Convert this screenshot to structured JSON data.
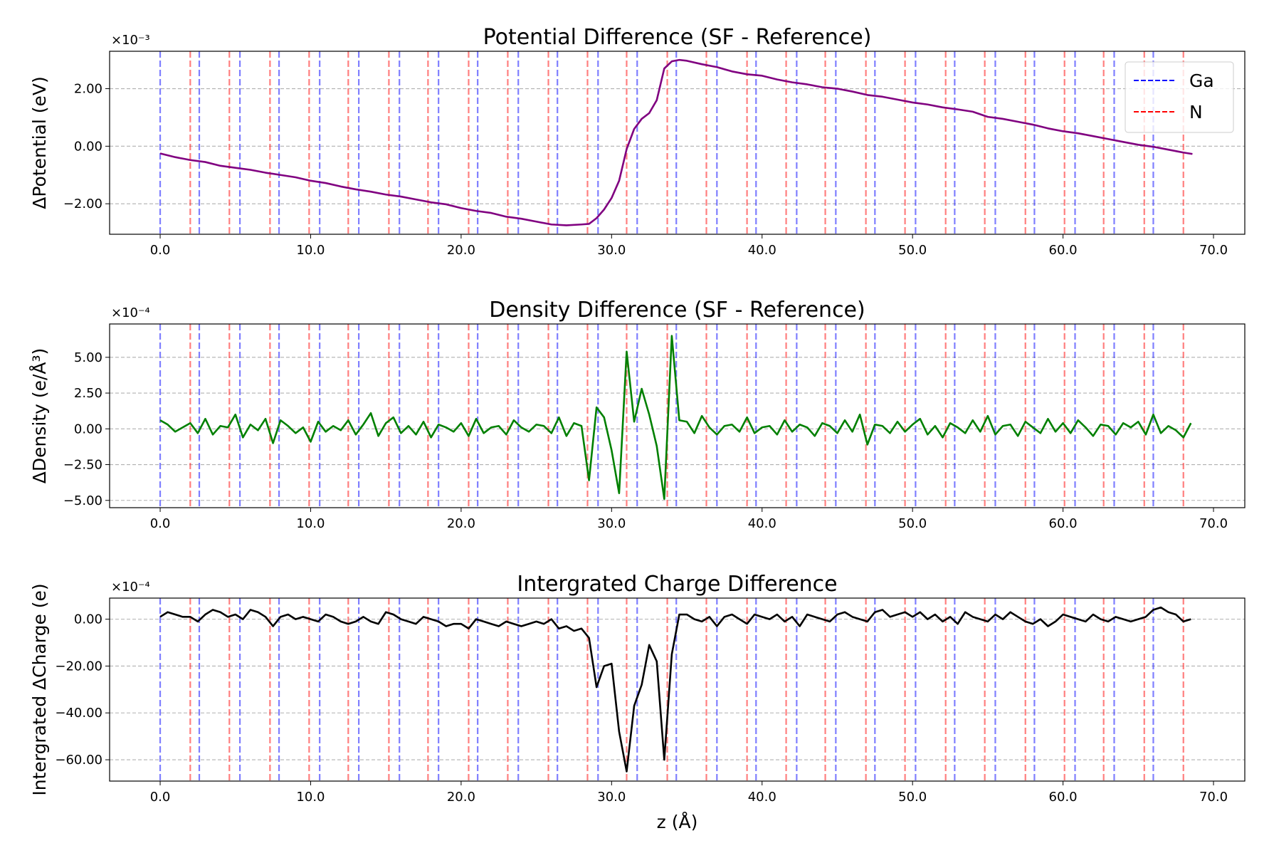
{
  "reference_lines": [
    {
      "name": "Ga",
      "color": "#0000ff",
      "x": [
        0.0,
        2.6,
        5.3,
        7.9,
        10.6,
        13.2,
        15.9,
        18.5,
        21.1,
        23.8,
        26.4,
        29.1,
        31.7,
        34.3,
        37.0,
        39.6,
        42.3,
        44.9,
        47.5,
        50.2,
        52.8,
        55.5,
        58.1,
        60.8,
        63.4,
        66.0
      ]
    },
    {
      "name": "N",
      "color": "#ff0000",
      "x": [
        2.0,
        4.6,
        7.3,
        9.9,
        12.5,
        15.2,
        17.8,
        20.5,
        23.1,
        25.8,
        28.4,
        31.0,
        33.7,
        36.3,
        39.0,
        41.6,
        44.2,
        46.9,
        49.5,
        52.2,
        54.8,
        57.5,
        60.1,
        62.7,
        65.4,
        68.0
      ]
    }
  ],
  "chart_data": [
    {
      "type": "line",
      "title": "Potential Difference (SF - Reference)",
      "y_label": "ΔPotential (eV)",
      "y_offset_label": "×10⁻³",
      "color": "#800080",
      "legend": "upper right",
      "grid": "y",
      "xlim": [
        -3.36,
        72.08
      ],
      "ylim": [
        -3.06,
        3.3
      ],
      "xticks": [
        {
          "value": 0,
          "label": "0.0"
        },
        {
          "value": 10,
          "label": "10.0"
        },
        {
          "value": 20,
          "label": "20.0"
        },
        {
          "value": 30,
          "label": "30.0"
        },
        {
          "value": 40,
          "label": "40.0"
        },
        {
          "value": 50,
          "label": "50.0"
        },
        {
          "value": 60,
          "label": "60.0"
        },
        {
          "value": 70,
          "label": "70.0"
        }
      ],
      "yticks": [
        {
          "value": -2,
          "label": "−2.00"
        },
        {
          "value": 0,
          "label": "0.00"
        },
        {
          "value": 2,
          "label": "2.00"
        }
      ],
      "x": [
        0,
        1,
        2,
        3,
        4,
        5,
        6,
        7,
        8,
        9,
        10,
        11,
        12,
        13,
        14,
        15,
        16,
        17,
        18,
        19,
        20,
        21,
        22,
        23,
        24,
        25,
        26,
        27,
        28,
        28.5,
        29,
        29.5,
        30,
        30.5,
        31,
        31.5,
        32,
        32.5,
        33,
        33.5,
        34,
        34.5,
        35,
        36,
        37,
        38,
        39,
        40,
        41,
        42,
        43,
        44,
        45,
        46,
        47,
        48,
        49,
        50,
        51,
        52,
        53,
        54,
        55,
        56,
        57,
        58,
        59,
        60,
        61,
        62,
        63,
        64,
        65,
        66,
        67,
        68,
        68.6
      ],
      "values": [
        -0.25,
        -0.38,
        -0.48,
        -0.55,
        -0.68,
        -0.75,
        -0.82,
        -0.92,
        -1.0,
        -1.08,
        -1.2,
        -1.28,
        -1.4,
        -1.5,
        -1.58,
        -1.68,
        -1.75,
        -1.85,
        -1.95,
        -2.02,
        -2.15,
        -2.25,
        -2.32,
        -2.45,
        -2.52,
        -2.62,
        -2.72,
        -2.75,
        -2.72,
        -2.7,
        -2.5,
        -2.2,
        -1.8,
        -1.2,
        -0.1,
        0.6,
        0.95,
        1.15,
        1.6,
        2.7,
        2.95,
        3.0,
        2.97,
        2.85,
        2.75,
        2.6,
        2.5,
        2.45,
        2.32,
        2.22,
        2.15,
        2.05,
        2.0,
        1.9,
        1.78,
        1.72,
        1.62,
        1.52,
        1.45,
        1.35,
        1.28,
        1.2,
        1.02,
        0.95,
        0.85,
        0.75,
        0.62,
        0.52,
        0.45,
        0.35,
        0.25,
        0.15,
        0.05,
        -0.02,
        -0.12,
        -0.22,
        -0.27
      ]
    },
    {
      "type": "line",
      "title": "Density Difference (SF - Reference)",
      "y_label": "ΔDensity (e/Å³)",
      "y_offset_label": "×10⁻⁴",
      "color": "#008000",
      "grid": "y",
      "xlim": [
        -3.36,
        72.08
      ],
      "ylim": [
        -5.51,
        7.33
      ],
      "xticks": [
        {
          "value": 0,
          "label": "0.0"
        },
        {
          "value": 10,
          "label": "10.0"
        },
        {
          "value": 20,
          "label": "20.0"
        },
        {
          "value": 30,
          "label": "30.0"
        },
        {
          "value": 40,
          "label": "40.0"
        },
        {
          "value": 50,
          "label": "50.0"
        },
        {
          "value": 60,
          "label": "60.0"
        },
        {
          "value": 70,
          "label": "70.0"
        }
      ],
      "yticks": [
        {
          "value": -5,
          "label": "−5.00"
        },
        {
          "value": -2.5,
          "label": "−2.50"
        },
        {
          "value": 0,
          "label": "0.00"
        },
        {
          "value": 2.5,
          "label": "2.50"
        },
        {
          "value": 5,
          "label": "5.00"
        }
      ],
      "x": [
        0,
        0.5,
        1,
        1.5,
        2,
        2.5,
        3,
        3.5,
        4,
        4.5,
        5,
        5.5,
        6,
        6.5,
        7,
        7.5,
        8,
        8.5,
        9,
        9.5,
        10,
        10.5,
        11,
        11.5,
        12,
        12.5,
        13,
        13.5,
        14,
        14.5,
        15,
        15.5,
        16,
        16.5,
        17,
        17.5,
        18,
        18.5,
        19,
        19.5,
        20,
        20.5,
        21,
        21.5,
        22,
        22.5,
        23,
        23.5,
        24,
        24.5,
        25,
        25.5,
        26,
        26.5,
        27,
        27.5,
        28,
        28.5,
        29,
        29.5,
        30,
        30.5,
        31,
        31.5,
        32,
        32.5,
        33,
        33.5,
        34,
        34.5,
        35,
        35.5,
        36,
        36.5,
        37,
        37.5,
        38,
        38.5,
        39,
        39.5,
        40,
        40.5,
        41,
        41.5,
        42,
        42.5,
        43,
        43.5,
        44,
        44.5,
        45,
        45.5,
        46,
        46.5,
        47,
        47.5,
        48,
        48.5,
        49,
        49.5,
        50,
        50.5,
        51,
        51.5,
        52,
        52.5,
        53,
        53.5,
        54,
        54.5,
        55,
        55.5,
        56,
        56.5,
        57,
        57.5,
        58,
        58.5,
        59,
        59.5,
        60,
        60.5,
        61,
        61.5,
        62,
        62.5,
        63,
        63.5,
        64,
        64.5,
        65,
        65.5,
        66,
        66.5,
        67,
        67.5,
        68,
        68.5
      ],
      "values": [
        0.6,
        0.3,
        -0.2,
        0.1,
        0.4,
        -0.3,
        0.7,
        -0.4,
        0.2,
        0.1,
        1.0,
        -0.6,
        0.3,
        -0.1,
        0.7,
        -1.0,
        0.6,
        0.2,
        -0.3,
        0.1,
        -0.9,
        0.5,
        -0.2,
        0.2,
        -0.1,
        0.6,
        -0.4,
        0.3,
        1.1,
        -0.5,
        0.4,
        0.8,
        -0.3,
        0.2,
        -0.4,
        0.5,
        -0.6,
        0.3,
        0.1,
        -0.2,
        0.4,
        -0.5,
        0.7,
        -0.3,
        0.1,
        0.2,
        -0.4,
        0.6,
        0.1,
        -0.2,
        0.3,
        0.2,
        -0.3,
        0.8,
        -0.5,
        0.4,
        0.2,
        -3.6,
        1.5,
        0.8,
        -1.5,
        -4.5,
        5.4,
        0.5,
        2.8,
        1.0,
        -1.2,
        -4.9,
        6.5,
        0.6,
        0.5,
        -0.3,
        0.9,
        0.1,
        -0.4,
        0.2,
        0.3,
        -0.2,
        0.8,
        -0.3,
        0.1,
        0.2,
        -0.4,
        0.6,
        -0.2,
        0.3,
        0.1,
        -0.5,
        0.4,
        0.2,
        -0.3,
        0.6,
        -0.2,
        1.0,
        -1.1,
        0.3,
        0.2,
        -0.3,
        0.5,
        -0.2,
        0.3,
        0.7,
        -0.4,
        0.2,
        -0.6,
        0.4,
        0.1,
        -0.3,
        0.6,
        -0.2,
        0.9,
        -0.4,
        0.2,
        0.3,
        -0.5,
        0.5,
        0.1,
        -0.3,
        0.7,
        -0.2,
        0.4,
        -0.3,
        0.6,
        0.1,
        -0.5,
        0.3,
        0.2,
        -0.4,
        0.4,
        0.1,
        0.5,
        -0.4,
        1.0,
        -0.3,
        0.2,
        -0.1,
        -0.6,
        0.4
      ]
    },
    {
      "type": "line",
      "title": "Intergrated Charge Difference",
      "y_label": "Intergrated ΔCharge (e)",
      "x_label": "z (Å)",
      "y_offset_label": "×10⁻⁴",
      "color": "#000000",
      "grid": "y",
      "xlim": [
        -3.36,
        72.08
      ],
      "ylim": [
        -69.1,
        9.0
      ],
      "xticks": [
        {
          "value": 0,
          "label": "0.0"
        },
        {
          "value": 10,
          "label": "10.0"
        },
        {
          "value": 20,
          "label": "20.0"
        },
        {
          "value": 30,
          "label": "30.0"
        },
        {
          "value": 40,
          "label": "40.0"
        },
        {
          "value": 50,
          "label": "50.0"
        },
        {
          "value": 60,
          "label": "60.0"
        },
        {
          "value": 70,
          "label": "70.0"
        }
      ],
      "yticks": [
        {
          "value": -60,
          "label": "−60.00"
        },
        {
          "value": -40,
          "label": "−40.00"
        },
        {
          "value": -20,
          "label": "−20.00"
        },
        {
          "value": 0,
          "label": "0.00"
        }
      ],
      "x": [
        0,
        0.5,
        1,
        1.5,
        2,
        2.5,
        3,
        3.5,
        4,
        4.5,
        5,
        5.5,
        6,
        6.5,
        7,
        7.5,
        8,
        8.5,
        9,
        9.5,
        10,
        10.5,
        11,
        11.5,
        12,
        12.5,
        13,
        13.5,
        14,
        14.5,
        15,
        15.5,
        16,
        16.5,
        17,
        17.5,
        18,
        18.5,
        19,
        19.5,
        20,
        20.5,
        21,
        21.5,
        22,
        22.5,
        23,
        23.5,
        24,
        24.5,
        25,
        25.5,
        26,
        26.5,
        27,
        27.5,
        28,
        28.5,
        29,
        29.5,
        30,
        30.5,
        31,
        31.5,
        32,
        32.5,
        33,
        33.5,
        34,
        34.5,
        35,
        35.5,
        36,
        36.5,
        37,
        37.5,
        38,
        38.5,
        39,
        39.5,
        40,
        40.5,
        41,
        41.5,
        42,
        42.5,
        43,
        43.5,
        44,
        44.5,
        45,
        45.5,
        46,
        46.5,
        47,
        47.5,
        48,
        48.5,
        49,
        49.5,
        50,
        50.5,
        51,
        51.5,
        52,
        52.5,
        53,
        53.5,
        54,
        54.5,
        55,
        55.5,
        56,
        56.5,
        57,
        57.5,
        58,
        58.5,
        59,
        59.5,
        60,
        60.5,
        61,
        61.5,
        62,
        62.5,
        63,
        63.5,
        64,
        64.5,
        65,
        65.5,
        66,
        66.5,
        67,
        67.5,
        68,
        68.5
      ],
      "values": [
        1,
        3,
        2,
        1,
        1,
        -1,
        2,
        4,
        3,
        1,
        2,
        0,
        4,
        3,
        1,
        -3,
        1,
        2,
        0,
        1,
        0,
        -1,
        2,
        1,
        -1,
        -2,
        -1,
        1,
        -1,
        -2,
        3,
        2,
        0,
        -1,
        -2,
        1,
        0,
        -1,
        -3,
        -2,
        -2,
        -4,
        0,
        -1,
        -2,
        -3,
        -1,
        -2,
        -3,
        -2,
        -1,
        -2,
        0,
        -4,
        -3,
        -5,
        -4,
        -8,
        -29,
        -20,
        -19,
        -48,
        -65,
        -37,
        -28,
        -11,
        -18,
        -60,
        -15,
        2,
        2,
        0,
        -1,
        1,
        -3,
        1,
        2,
        0,
        -2,
        2,
        1,
        0,
        2,
        -1,
        1,
        -3,
        2,
        1,
        0,
        -1,
        2,
        3,
        1,
        0,
        -1,
        3,
        4,
        1,
        2,
        3,
        1,
        3,
        0,
        2,
        -1,
        1,
        -2,
        3,
        1,
        0,
        -1,
        2,
        0,
        3,
        1,
        -1,
        -2,
        0,
        -3,
        -1,
        2,
        1,
        0,
        -1,
        2,
        0,
        -1,
        1,
        0,
        -1,
        0,
        1,
        4,
        5,
        3,
        2,
        -1,
        0
      ]
    }
  ]
}
